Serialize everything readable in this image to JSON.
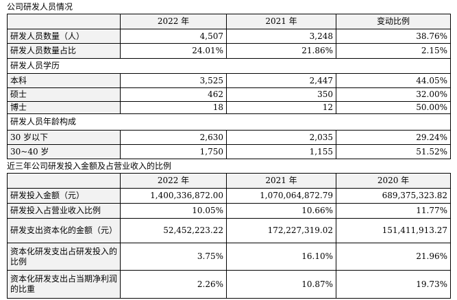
{
  "section1": {
    "title": "公司研发人员情况",
    "header": [
      "",
      "2022 年",
      "2021 年",
      "变动比例"
    ],
    "rows": [
      [
        "研发人员数量（人）",
        "4,507",
        "3,248",
        "38.76%"
      ],
      [
        "研发人员数量占比",
        "24.01%",
        "21.86%",
        "2.15%"
      ],
      [
        "研发人员学历"
      ],
      [
        "本科",
        "3,525",
        "2,447",
        "44.05%"
      ],
      [
        "硕士",
        "462",
        "350",
        "32.00%"
      ],
      [
        "博士",
        "18",
        "12",
        "50.00%"
      ],
      [
        "研发人员年龄构成"
      ],
      [
        "30 岁以下",
        "2,630",
        "2,035",
        "29.24%"
      ],
      [
        "30~40 岁",
        "1,750",
        "1,155",
        "51.52%"
      ]
    ]
  },
  "section2": {
    "title": "近三年公司研发投入金额及占营业收入的比例",
    "header": [
      "",
      "2022 年",
      "2021 年",
      "2020 年"
    ],
    "rows": [
      [
        "研发投入金额（元）",
        "1,400,336,872.00",
        "1,070,064,872.79",
        "689,375,323.82"
      ],
      [
        "研发投入占营业收入比例",
        "10.05%",
        "10.66%",
        "11.77%"
      ],
      [
        "研发支出资本化的金额（元）",
        "52,452,223.22",
        "172,227,319.02",
        "151,411,913.27"
      ],
      [
        "资本化研发支出占研发投入的比例",
        "3.75%",
        "16.10%",
        "21.96%"
      ],
      [
        "资本化研发支出占当期净利润的比重",
        "2.26%",
        "10.87%",
        "19.73%"
      ]
    ]
  }
}
